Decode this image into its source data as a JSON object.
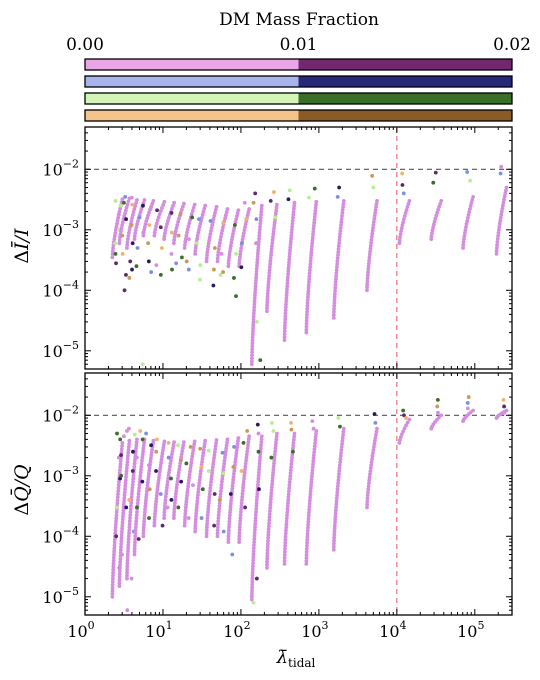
{
  "colorbar": {
    "title": "DM Mass Fraction",
    "ticks": [
      {
        "value": 0.0,
        "label": "0.00"
      },
      {
        "value": 0.01,
        "label": "0.01"
      },
      {
        "value": 0.02,
        "label": "0.02"
      }
    ],
    "range": [
      0.0,
      0.02
    ],
    "bars": [
      {
        "light": "#e9a6e6",
        "dark": "#73276f"
      },
      {
        "light": "#a7b3ea",
        "dark": "#28287a"
      },
      {
        "light": "#d4f5b8",
        "dark": "#3b6e28"
      },
      {
        "light": "#f6c48a",
        "dark": "#8a5a27"
      }
    ]
  },
  "chart_data": [
    {
      "type": "scatter",
      "panel": "top",
      "ylabel_parts": {
        "main": "Δ",
        "symbol": "Ī",
        "tail": "/I"
      },
      "xscale": "log",
      "yscale": "log",
      "xlim": [
        1,
        300000
      ],
      "ylim": [
        5e-06,
        0.05
      ],
      "hline": 0.01,
      "vline": 10000,
      "yticks": [
        {
          "value": 1e-05,
          "base": "10",
          "exp": "−5"
        },
        {
          "value": 0.0001,
          "base": "10",
          "exp": "−4"
        },
        {
          "value": 0.001,
          "base": "10",
          "exp": "−3"
        },
        {
          "value": 0.01,
          "base": "10",
          "exp": "−2"
        }
      ],
      "columns": [
        {
          "x": 2.6,
          "range": [
            0.00035,
            0.0032
          ],
          "scatter": [
            0.003,
            0.0025,
            0.0018,
            0.001,
            0.0006,
            0.0004,
            0.00028
          ]
        },
        {
          "x": 3.2,
          "range": [
            0.0006,
            0.0033
          ],
          "scatter": [
            0.0035,
            0.0028,
            0.0015,
            0.0008,
            0.0004,
            0.00018,
            0.0001
          ]
        },
        {
          "x": 4.0,
          "range": [
            0.0005,
            0.0031
          ],
          "scatter": [
            0.0034,
            0.0026,
            0.0012,
            0.0006,
            0.0003,
            0.00022,
            0.00016
          ]
        },
        {
          "x": 5.0,
          "range": [
            0.0007,
            0.0031
          ],
          "scatter": [
            0.0025,
            0.0016,
            0.0009,
            0.0005,
            0.00025,
            6e-06
          ]
        },
        {
          "x": 6.5,
          "range": [
            0.0008,
            0.003
          ],
          "scatter": [
            0.0022,
            0.0012,
            0.0006,
            0.0003,
            0.0002
          ]
        },
        {
          "x": 9.0,
          "range": [
            0.0008,
            0.0029
          ],
          "scatter": [
            0.0021,
            0.0011,
            0.0005,
            0.00026,
            0.00018
          ]
        },
        {
          "x": 12.0,
          "range": [
            0.0007,
            0.0028
          ],
          "scatter": [
            0.0019,
            0.0009,
            0.0004,
            0.00022
          ]
        },
        {
          "x": 16.0,
          "range": [
            0.0006,
            0.0027
          ],
          "scatter": [
            0.0018,
            0.0008,
            0.00035,
            0.00028
          ]
        },
        {
          "x": 22.0,
          "range": [
            0.0005,
            0.0026
          ],
          "scatter": [
            0.0016,
            0.0007,
            0.0003,
            0.00022
          ]
        },
        {
          "x": 30.0,
          "range": [
            0.0004,
            0.0025
          ],
          "scatter": [
            0.0015,
            0.0006,
            0.00026,
            0.00015
          ]
        },
        {
          "x": 42.0,
          "range": [
            0.0003,
            0.0024
          ],
          "scatter": [
            0.0014,
            0.0005,
            0.00022,
            0.00012
          ]
        },
        {
          "x": 58.0,
          "range": [
            0.0003,
            0.0022
          ],
          "scatter": [
            0.0013,
            0.0004,
            0.0002,
            0.00018
          ]
        },
        {
          "x": 80.0,
          "range": [
            0.00025,
            0.0021
          ],
          "scatter": [
            0.0012,
            0.0004,
            0.00016,
            8e-05
          ]
        },
        {
          "x": 110.0,
          "range": [
            0.00025,
            0.0022
          ],
          "scatter": [
            0.0028,
            0.0015,
            0.0006,
            0.00024
          ]
        },
        {
          "x": 160.0,
          "range": [
            6e-06,
            0.0025
          ],
          "scatter": [
            0.004,
            0.0028,
            0.0015,
            0.0006,
            3e-05,
            7e-06
          ]
        },
        {
          "x": 250.0,
          "range": [
            4.5e-05,
            0.0026
          ],
          "scatter": [
            0.0042,
            0.003,
            0.0016
          ]
        },
        {
          "x": 420.0,
          "range": [
            1.5e-05,
            0.0028
          ],
          "scatter": [
            0.0045,
            0.0032
          ]
        },
        {
          "x": 800.0,
          "range": [
            2e-05,
            0.0029
          ],
          "scatter": [
            0.0048,
            0.0034
          ]
        },
        {
          "x": 1800.0,
          "range": [
            3.5e-05,
            0.003
          ],
          "scatter": [
            0.005,
            0.0035
          ]
        },
        {
          "x": 4800.0,
          "range": [
            0.0001,
            0.003
          ],
          "scatter": [
            0.0078,
            0.005
          ]
        },
        {
          "x": 12500.0,
          "range": [
            0.0006,
            0.003
          ],
          "scatter": [
            0.0085,
            0.0055,
            0.004
          ]
        },
        {
          "x": 32000.0,
          "range": [
            0.0007,
            0.003
          ],
          "scatter": [
            0.0088,
            0.006
          ]
        },
        {
          "x": 82000.0,
          "range": [
            0.0005,
            0.0035
          ],
          "scatter": [
            0.009,
            0.0065
          ]
        },
        {
          "x": 220000.0,
          "range": [
            0.0004,
            0.005
          ],
          "scatter": [
            0.011,
            0.0085
          ]
        }
      ]
    },
    {
      "type": "scatter",
      "panel": "bottom",
      "ylabel_parts": {
        "main": "Δ",
        "symbol": "Q̄",
        "tail": "/Q"
      },
      "xlabel_parts": {
        "symbol": "λ̄",
        "sub": "tidal"
      },
      "xscale": "log",
      "yscale": "log",
      "xlim": [
        1,
        300000
      ],
      "ylim": [
        5e-06,
        0.05
      ],
      "hline": 0.01,
      "vline": 10000,
      "xticks": [
        {
          "value": 1,
          "base": "10",
          "exp": "0"
        },
        {
          "value": 10,
          "base": "10",
          "exp": "1"
        },
        {
          "value": 100,
          "base": "10",
          "exp": "2"
        },
        {
          "value": 1000,
          "base": "10",
          "exp": "3"
        },
        {
          "value": 10000,
          "base": "10",
          "exp": "4"
        },
        {
          "value": 100000,
          "base": "10",
          "exp": "5"
        }
      ],
      "yticks": [
        {
          "value": 1e-05,
          "base": "10",
          "exp": "−5"
        },
        {
          "value": 0.0001,
          "base": "10",
          "exp": "−4"
        },
        {
          "value": 0.001,
          "base": "10",
          "exp": "−3"
        },
        {
          "value": 0.01,
          "base": "10",
          "exp": "−2"
        }
      ],
      "columns": [
        {
          "x": 2.6,
          "range": [
            1e-05,
            0.0035
          ],
          "scatter": [
            0.005,
            0.004,
            0.002,
            0.0009,
            0.0003,
            0.0001,
            3e-05
          ]
        },
        {
          "x": 3.2,
          "range": [
            1.5e-05,
            0.0038
          ],
          "scatter": [
            0.0055,
            0.0045,
            0.0022,
            0.001,
            0.0003,
            5e-05,
            6e-06
          ]
        },
        {
          "x": 4.0,
          "range": [
            2e-05,
            0.004
          ],
          "scatter": [
            0.006,
            0.0048,
            0.0025,
            0.0012,
            0.0004,
            0.00012,
            2e-05
          ]
        },
        {
          "x": 5.0,
          "range": [
            5e-05,
            0.004
          ],
          "scatter": [
            0.0055,
            0.004,
            0.002,
            0.0008,
            0.0003,
            9e-05
          ]
        },
        {
          "x": 6.5,
          "range": [
            0.0001,
            0.0038
          ],
          "scatter": [
            0.005,
            0.0032,
            0.0015,
            0.0006,
            0.0002
          ]
        },
        {
          "x": 9.0,
          "range": [
            0.00015,
            0.0037
          ],
          "scatter": [
            0.004,
            0.0025,
            0.0012,
            0.0005,
            0.00015
          ]
        },
        {
          "x": 12.0,
          "range": [
            0.0002,
            0.0036
          ],
          "scatter": [
            0.0035,
            0.002,
            0.0009,
            0.0004,
            0.0003
          ]
        },
        {
          "x": 16.0,
          "range": [
            0.0002,
            0.0036
          ],
          "scatter": [
            0.0032,
            0.0018,
            0.0008,
            0.0003
          ]
        },
        {
          "x": 22.0,
          "range": [
            0.00015,
            0.0037
          ],
          "scatter": [
            0.003,
            0.0016,
            0.0007,
            0.0002
          ]
        },
        {
          "x": 30.0,
          "range": [
            0.00012,
            0.0038
          ],
          "scatter": [
            0.0028,
            0.0014,
            0.0006,
            0.0002
          ]
        },
        {
          "x": 42.0,
          "range": [
            0.0001,
            0.0039
          ],
          "scatter": [
            0.0026,
            0.0012,
            0.0005,
            0.00015
          ]
        },
        {
          "x": 58.0,
          "range": [
            0.0001,
            0.004
          ],
          "scatter": [
            0.0024,
            0.0011,
            0.0004,
            0.00012
          ]
        },
        {
          "x": 80.0,
          "range": [
            8e-05,
            0.0042
          ],
          "scatter": [
            0.003,
            0.0014,
            0.0005,
            5e-05
          ]
        },
        {
          "x": 110.0,
          "range": [
            8e-05,
            0.0045
          ],
          "scatter": [
            0.0055,
            0.0035,
            0.0012,
            0.0003
          ]
        },
        {
          "x": 160.0,
          "range": [
            9e-06,
            0.0045
          ],
          "scatter": [
            0.007,
            0.005,
            0.0025,
            0.0006,
            2e-05,
            8e-06
          ]
        },
        {
          "x": 250.0,
          "range": [
            3e-05,
            0.005
          ],
          "scatter": [
            0.0075,
            0.0055,
            0.002
          ]
        },
        {
          "x": 420.0,
          "range": [
            3.5e-05,
            0.005
          ],
          "scatter": [
            0.0075,
            0.0058,
            0.0025
          ]
        },
        {
          "x": 800.0,
          "range": [
            3.5e-05,
            0.0055
          ],
          "scatter": [
            0.008,
            0.006
          ]
        },
        {
          "x": 1800.0,
          "range": [
            6e-05,
            0.006
          ],
          "scatter": [
            0.009,
            0.0065
          ]
        },
        {
          "x": 4800.0,
          "range": [
            0.0003,
            0.006
          ],
          "scatter": [
            0.0105,
            0.0075
          ]
        },
        {
          "x": 12500.0,
          "range": [
            0.0035,
            0.0085
          ],
          "scatter": [
            0.012,
            0.01,
            0.009
          ]
        },
        {
          "x": 32000.0,
          "range": [
            0.006,
            0.01
          ],
          "scatter": [
            0.018,
            0.014,
            0.011
          ]
        },
        {
          "x": 82000.0,
          "range": [
            0.008,
            0.012
          ],
          "scatter": [
            0.02,
            0.016,
            0.013
          ]
        },
        {
          "x": 220000.0,
          "range": [
            0.009,
            0.012
          ],
          "scatter": [
            0.018,
            0.014,
            0.011
          ]
        }
      ]
    }
  ]
}
